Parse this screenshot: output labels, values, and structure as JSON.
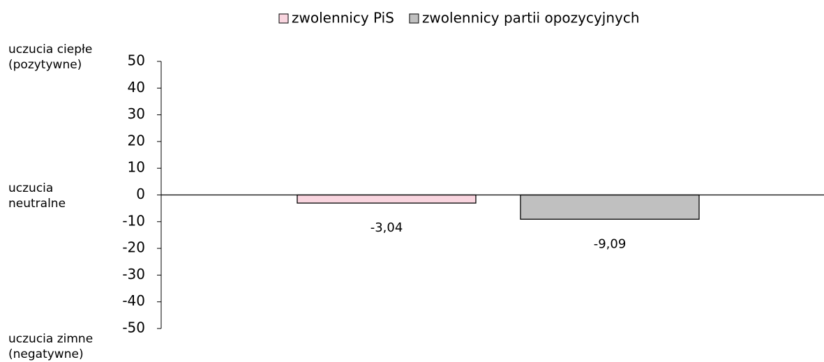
{
  "chart_data": {
    "type": "bar",
    "categories": [
      null
    ],
    "series": [
      {
        "name": "zwolennicy PiS",
        "color": "#f9d5df",
        "values": [
          -3.04
        ],
        "value_labels": [
          "-3,04"
        ]
      },
      {
        "name": "zwolennicy partii opozycyjnych",
        "color": "#c0c0c0",
        "values": [
          -9.09
        ],
        "value_labels": [
          "-9,09"
        ]
      }
    ],
    "ylim": [
      -50,
      50
    ],
    "yticks": [
      -50,
      -40,
      -30,
      -20,
      -10,
      0,
      10,
      20,
      30,
      40,
      50
    ],
    "annotations": [
      "uczucia ciepłe (pozytywne)",
      "uczucia neutralne",
      "uczucia zimne (negatywne)"
    ],
    "legend": "top"
  }
}
